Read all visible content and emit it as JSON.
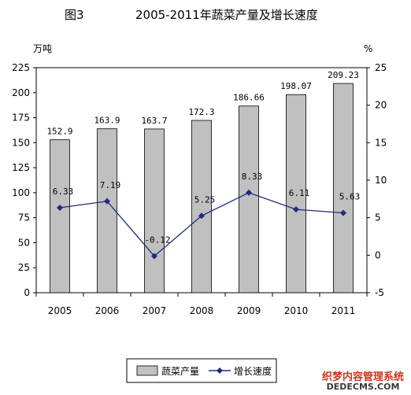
{
  "chart_data": {
    "type": "bar+line",
    "title_prefix": "图3",
    "title": "2005-2011年蔬菜产量及增长速度",
    "y_left_unit": "万吨",
    "y_right_unit": "%",
    "categories": [
      "2005",
      "2006",
      "2007",
      "2008",
      "2009",
      "2010",
      "2011"
    ],
    "y_left_ticks": [
      "225",
      "200",
      "175",
      "150",
      "125",
      "100",
      "75",
      "50",
      "25",
      "0"
    ],
    "y_right_ticks": [
      "25",
      "20",
      "15",
      "10",
      "5",
      "0",
      "-5"
    ],
    "ylim_left": [
      0,
      225
    ],
    "ylim_right": [
      -5,
      25
    ],
    "series": [
      {
        "name": "蔬菜产量",
        "type": "bar",
        "axis": "left",
        "color": "#c0c0c0",
        "values": [
          152.9,
          163.9,
          163.7,
          172.3,
          186.66,
          198.07,
          209.23
        ],
        "labels": [
          "152.9",
          "163.9",
          "163.7",
          "172.3",
          "186.66",
          "198.07",
          "209.23"
        ]
      },
      {
        "name": "增长速度",
        "type": "line",
        "axis": "right",
        "color": "#1f2a80",
        "values": [
          6.33,
          7.19,
          -0.12,
          5.25,
          8.33,
          6.11,
          5.63
        ],
        "labels": [
          "6.33",
          "7.19",
          "-0.12",
          "5.25",
          "8.33",
          "6.11",
          "5.63"
        ]
      }
    ],
    "grid": false,
    "legend_position": "bottom-center"
  },
  "watermark": {
    "cn": "织梦内容管理系统",
    "en": "DEDECMS.COM"
  }
}
